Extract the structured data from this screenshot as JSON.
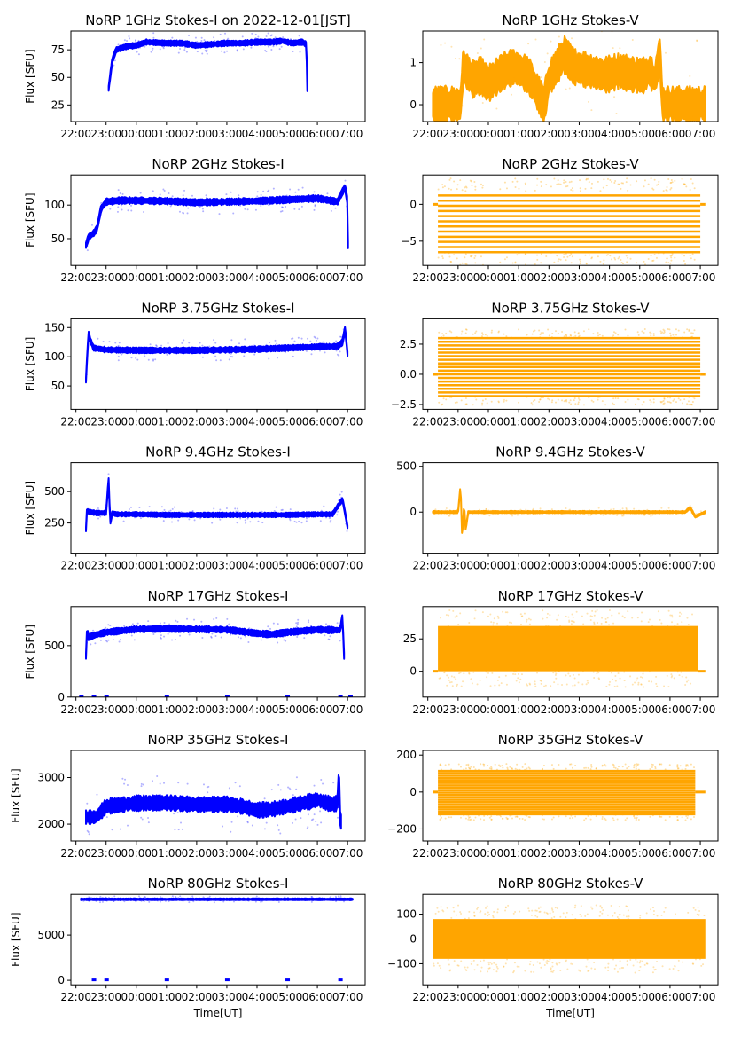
{
  "figure_title_date": "2022-12-01[JST]",
  "chart_data": [
    {
      "type": "scatter",
      "panel": "row1-left",
      "title": "NoRP 1GHz Stokes-I on 2022-12-01[JST]",
      "ylabel": "Flux [SFU]",
      "xlabel": "",
      "color": "#0000ff",
      "ylim": [
        10,
        92
      ],
      "yticks": [
        25,
        50,
        75
      ],
      "x": [
        "23:05",
        "23:12",
        "23:20",
        "23:40",
        "00:00",
        "00:20",
        "01:00",
        "01:30",
        "02:00",
        "02:30",
        "03:00",
        "03:30",
        "04:00",
        "04:30",
        "04:50",
        "05:10",
        "05:30",
        "05:38",
        "05:40"
      ],
      "y": [
        40,
        65,
        75,
        78,
        79,
        82,
        81,
        81,
        79,
        80,
        81,
        81,
        82,
        82,
        83,
        81,
        82,
        80,
        40
      ],
      "spread": 2
    },
    {
      "type": "scatter",
      "panel": "row1-right",
      "title": "NoRP 1GHz Stokes-V",
      "ylabel": "",
      "xlabel": "",
      "color": "#ffa500",
      "ylim": [
        -0.4,
        1.75
      ],
      "yticks": [
        0,
        1
      ],
      "x": [
        "22:10",
        "23:05",
        "23:10",
        "23:30",
        "23:45",
        "00:00",
        "00:30",
        "00:50",
        "01:20",
        "01:50",
        "02:00",
        "02:30",
        "02:50",
        "03:20",
        "03:50",
        "04:20",
        "04:50",
        "05:10",
        "05:20",
        "05:30",
        "05:40",
        "05:45",
        "07:10"
      ],
      "y": [
        0,
        0,
        0.9,
        0.6,
        0.7,
        0.5,
        0.8,
        0.9,
        0.7,
        0.0,
        0.6,
        1.2,
        0.9,
        0.8,
        0.7,
        0.8,
        0.7,
        0.7,
        0.8,
        0.6,
        1.2,
        0,
        0
      ],
      "spread": 0.35
    },
    {
      "type": "scatter",
      "panel": "row2-left",
      "title": "NoRP 2GHz Stokes-I",
      "ylabel": "Flux [SFU]",
      "xlabel": "",
      "color": "#0000ff",
      "ylim": [
        10,
        145
      ],
      "yticks": [
        50,
        100
      ],
      "x": [
        "22:20",
        "22:25",
        "22:35",
        "22:42",
        "22:50",
        "23:00",
        "23:30",
        "01:00",
        "02:00",
        "03:00",
        "04:00",
        "05:00",
        "06:00",
        "06:40",
        "06:50",
        "06:55",
        "07:00",
        "07:01"
      ],
      "y": [
        40,
        52,
        58,
        65,
        95,
        105,
        107,
        106,
        104,
        105,
        106,
        108,
        110,
        105,
        120,
        127,
        105,
        40
      ],
      "spread": 4
    },
    {
      "type": "scatter",
      "panel": "row2-right",
      "title": "NoRP 2GHz Stokes-V",
      "ylabel": "",
      "xlabel": "",
      "color": "#ffa500",
      "ylim": [
        -8.3,
        4
      ],
      "yticks": [
        -5,
        0
      ],
      "x": [
        "22:10",
        "22:20",
        "07:00",
        "07:10"
      ],
      "y": [
        0,
        -2.5,
        -2.5,
        0
      ],
      "banded": true,
      "band_range": [
        -6.5,
        1.8
      ],
      "band_step": 0.7,
      "spread": 0
    },
    {
      "type": "scatter",
      "panel": "row3-left",
      "title": "NoRP 3.75GHz Stokes-I",
      "ylabel": "Flux [SFU]",
      "xlabel": "",
      "color": "#0000ff",
      "ylim": [
        10,
        165
      ],
      "yticks": [
        50,
        100,
        150
      ],
      "x": [
        "22:20",
        "22:22",
        "22:25",
        "22:28",
        "22:35",
        "23:00",
        "00:00",
        "01:00",
        "02:00",
        "03:00",
        "04:00",
        "05:00",
        "06:00",
        "06:40",
        "06:50",
        "06:55",
        "07:00"
      ],
      "y": [
        60,
        95,
        140,
        130,
        115,
        112,
        111,
        111,
        111,
        112,
        113,
        115,
        117,
        118,
        125,
        148,
        105
      ],
      "spread": 4
    },
    {
      "type": "scatter",
      "panel": "row3-right",
      "title": "NoRP 3.75GHz Stokes-V",
      "ylabel": "",
      "xlabel": "",
      "color": "#ffa500",
      "ylim": [
        -2.9,
        4.6
      ],
      "yticks": [
        -2.5,
        0.0,
        2.5
      ],
      "x": [
        "22:10",
        "22:20",
        "07:00",
        "07:10"
      ],
      "y": [
        0,
        0.5,
        0.5,
        0
      ],
      "banded": true,
      "band_range": [
        -1.8,
        3.0
      ],
      "band_step": 0.3,
      "spread": 0
    },
    {
      "type": "scatter",
      "panel": "row4-left",
      "title": "NoRP 9.4GHz Stokes-I",
      "ylabel": "Flux [SFU]",
      "xlabel": "",
      "color": "#0000ff",
      "ylim": [
        10,
        730
      ],
      "yticks": [
        250,
        500
      ],
      "x": [
        "22:20",
        "22:22",
        "22:25",
        "22:40",
        "23:00",
        "23:05",
        "23:08",
        "23:12",
        "23:20",
        "00:00",
        "01:00",
        "02:00",
        "03:00",
        "04:00",
        "05:00",
        "06:00",
        "06:30",
        "06:50",
        "06:55",
        "07:00"
      ],
      "y": [
        200,
        360,
        340,
        330,
        330,
        600,
        250,
        330,
        320,
        320,
        315,
        315,
        315,
        315,
        315,
        320,
        320,
        440,
        330,
        220
      ],
      "spread": 15
    },
    {
      "type": "scatter",
      "panel": "row4-right",
      "title": "NoRP 9.4GHz Stokes-V",
      "ylabel": "",
      "xlabel": "",
      "color": "#ffa500",
      "ylim": [
        -450,
        540
      ],
      "yticks": [
        0,
        500
      ],
      "x": [
        "22:10",
        "23:00",
        "23:05",
        "23:08",
        "23:12",
        "23:15",
        "23:20",
        "00:00",
        "04:00",
        "06:30",
        "06:40",
        "06:50",
        "07:10"
      ],
      "y": [
        0,
        0,
        300,
        -300,
        100,
        -200,
        0,
        0,
        0,
        0,
        50,
        -50,
        0
      ],
      "spread": 10
    },
    {
      "type": "scatter",
      "panel": "row5-left",
      "title": "NoRP 17GHz Stokes-I",
      "ylabel": "Flux [SFU]",
      "xlabel": "",
      "color": "#0000ff",
      "ylim": [
        0,
        880
      ],
      "yticks": [
        0,
        500
      ],
      "x": [
        "22:20",
        "22:22",
        "22:25",
        "22:35",
        "23:00",
        "00:00",
        "01:00",
        "02:00",
        "03:00",
        "04:00",
        "04:30",
        "05:00",
        "06:00",
        "06:45",
        "06:50",
        "06:53"
      ],
      "y": [
        400,
        650,
        580,
        600,
        630,
        660,
        665,
        660,
        655,
        620,
        610,
        630,
        655,
        650,
        780,
        400
      ],
      "spread": 25,
      "zero_marks": [
        "22:10",
        "22:35",
        "23:00",
        "01:00",
        "03:00",
        "05:00",
        "06:45",
        "07:05"
      ]
    },
    {
      "type": "scatter",
      "panel": "row5-right",
      "title": "NoRP 17GHz Stokes-V",
      "ylabel": "",
      "xlabel": "",
      "color": "#ffa500",
      "ylim": [
        -20,
        50
      ],
      "yticks": [
        0,
        25
      ],
      "x": [
        "22:10",
        "22:20",
        "06:55",
        "07:10"
      ],
      "y": [
        0,
        17,
        17,
        0
      ],
      "filled_range": [
        0,
        35
      ],
      "spread": 0
    },
    {
      "type": "scatter",
      "panel": "row6-left",
      "title": "NoRP 35GHz Stokes-I",
      "ylabel": "Flux [SFU]",
      "xlabel": "",
      "color": "#0000ff",
      "ylim": [
        1640,
        3580
      ],
      "yticks": [
        2000,
        3000
      ],
      "x": [
        "22:20",
        "22:40",
        "23:00",
        "00:00",
        "01:00",
        "02:00",
        "03:00",
        "03:30",
        "04:00",
        "04:30",
        "05:00",
        "06:00",
        "06:30",
        "06:40",
        "06:43",
        "06:45",
        "06:47"
      ],
      "y": [
        2150,
        2150,
        2380,
        2450,
        2460,
        2420,
        2430,
        2380,
        2300,
        2320,
        2380,
        2520,
        2420,
        2450,
        3200,
        2150,
        2050
      ],
      "spread": 130
    },
    {
      "type": "scatter",
      "panel": "row6-right",
      "title": "NoRP 35GHz Stokes-V",
      "ylabel": "",
      "xlabel": "",
      "color": "#ffa500",
      "ylim": [
        -265,
        225
      ],
      "yticks": [
        -200,
        0,
        200
      ],
      "x": [
        "22:10",
        "22:20",
        "06:50",
        "07:10"
      ],
      "y": [
        0,
        0,
        0,
        0
      ],
      "banded": true,
      "band_range": [
        -120,
        120
      ],
      "band_step": 13,
      "spread": 0
    },
    {
      "type": "scatter",
      "panel": "row7-left",
      "title": "NoRP 80GHz Stokes-I",
      "ylabel": "Flux [SFU]",
      "xlabel": "Time[UT]",
      "color": "#0000ff",
      "ylim": [
        -500,
        9500
      ],
      "yticks": [
        0,
        5000
      ],
      "x": [
        "22:10",
        "07:10"
      ],
      "y": [
        8950,
        8950
      ],
      "spread": 80,
      "zero_marks": [
        "22:35",
        "23:00",
        "01:00",
        "03:00",
        "05:00",
        "06:45"
      ]
    },
    {
      "type": "scatter",
      "panel": "row7-right",
      "title": "NoRP 80GHz Stokes-V",
      "ylabel": "",
      "xlabel": "Time[UT]",
      "color": "#ffa500",
      "ylim": [
        -185,
        180
      ],
      "yticks": [
        -100,
        0,
        100
      ],
      "x": [
        "22:10",
        "07:10"
      ],
      "y": [
        0,
        0
      ],
      "filled_range": [
        -80,
        80
      ],
      "spread": 0
    }
  ],
  "xticks": [
    "22:00",
    "23:00",
    "00:00",
    "01:00",
    "02:00",
    "03:00",
    "04:00",
    "05:00",
    "06:00",
    "07:00"
  ],
  "xlim": [
    "21:50",
    "07:35"
  ]
}
